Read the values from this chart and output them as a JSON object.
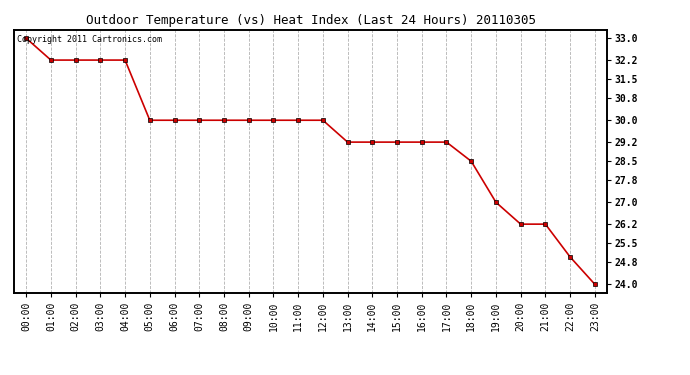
{
  "title": "Outdoor Temperature (vs) Heat Index (Last 24 Hours) 20110305",
  "copyright_text": "Copyright 2011 Cartronics.com",
  "x_labels": [
    "00:00",
    "01:00",
    "02:00",
    "03:00",
    "04:00",
    "05:00",
    "06:00",
    "07:00",
    "08:00",
    "09:00",
    "10:00",
    "11:00",
    "12:00",
    "13:00",
    "14:00",
    "15:00",
    "16:00",
    "17:00",
    "18:00",
    "19:00",
    "20:00",
    "21:00",
    "22:00",
    "23:00"
  ],
  "y_values": [
    33.0,
    32.2,
    32.2,
    32.2,
    32.2,
    30.0,
    30.0,
    30.0,
    30.0,
    30.0,
    30.0,
    30.0,
    30.0,
    29.2,
    29.2,
    29.2,
    29.2,
    29.2,
    28.5,
    27.0,
    26.2,
    26.2,
    25.0,
    24.0
  ],
  "line_color": "#cc0000",
  "marker_color": "#000000",
  "background_color": "#ffffff",
  "plot_bg_color": "#ffffff",
  "grid_color": "#aaaaaa",
  "y_ticks": [
    24.0,
    24.8,
    25.5,
    26.2,
    27.0,
    27.8,
    28.5,
    29.2,
    30.0,
    30.8,
    31.5,
    32.2,
    33.0
  ],
  "ylim_min": 23.7,
  "ylim_max": 33.3,
  "title_fontsize": 9,
  "tick_fontsize": 7,
  "copyright_fontsize": 6
}
